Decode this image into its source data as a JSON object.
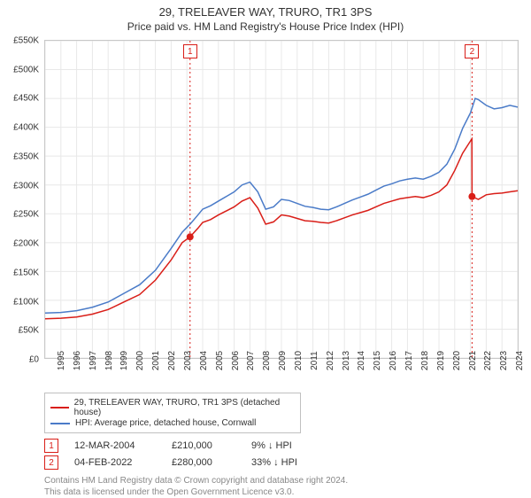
{
  "title": "29, TRELEAVER WAY, TRURO, TR1 3PS",
  "subtitle": "Price paid vs. HM Land Registry's House Price Index (HPI)",
  "chart": {
    "type": "line",
    "background_color": "#ffffff",
    "grid_color": "#e8e8e8",
    "border_color": "#c8c8c8",
    "xlim": [
      1995,
      2025
    ],
    "ylim": [
      0,
      550000
    ],
    "y_ticks": [
      0,
      50000,
      100000,
      150000,
      200000,
      250000,
      300000,
      350000,
      400000,
      450000,
      500000,
      550000
    ],
    "y_tick_labels": [
      "£0",
      "£50K",
      "£100K",
      "£150K",
      "£200K",
      "£250K",
      "£300K",
      "£350K",
      "£400K",
      "£450K",
      "£500K",
      "£550K"
    ],
    "x_ticks": [
      1995,
      1996,
      1997,
      1998,
      1999,
      2000,
      2001,
      2002,
      2003,
      2004,
      2005,
      2006,
      2007,
      2008,
      2009,
      2010,
      2011,
      2012,
      2013,
      2014,
      2015,
      2016,
      2017,
      2018,
      2019,
      2020,
      2021,
      2022,
      2023,
      2024,
      2025
    ],
    "tick_fontsize": 10,
    "series": [
      {
        "name": "29, TRELEAVER WAY, TRURO, TR1 3PS (detached house)",
        "color": "#d91e18",
        "line_width": 1.5,
        "data": [
          [
            1995,
            68000
          ],
          [
            1996,
            69000
          ],
          [
            1997,
            71000
          ],
          [
            1998,
            76000
          ],
          [
            1999,
            84000
          ],
          [
            2000,
            97000
          ],
          [
            2001,
            110000
          ],
          [
            2002,
            135000
          ],
          [
            2003,
            170000
          ],
          [
            2003.7,
            200000
          ],
          [
            2004.2,
            210000
          ],
          [
            2004.7,
            225000
          ],
          [
            2005,
            235000
          ],
          [
            2005.5,
            240000
          ],
          [
            2006,
            248000
          ],
          [
            2006.5,
            255000
          ],
          [
            2007,
            262000
          ],
          [
            2007.5,
            272000
          ],
          [
            2008,
            278000
          ],
          [
            2008.5,
            260000
          ],
          [
            2009,
            232000
          ],
          [
            2009.5,
            236000
          ],
          [
            2010,
            248000
          ],
          [
            2010.5,
            246000
          ],
          [
            2011,
            242000
          ],
          [
            2011.5,
            238000
          ],
          [
            2012,
            237000
          ],
          [
            2012.5,
            235000
          ],
          [
            2013,
            234000
          ],
          [
            2013.5,
            238000
          ],
          [
            2014,
            243000
          ],
          [
            2014.5,
            248000
          ],
          [
            2015,
            252000
          ],
          [
            2015.5,
            256000
          ],
          [
            2016,
            262000
          ],
          [
            2016.5,
            268000
          ],
          [
            2017,
            272000
          ],
          [
            2017.5,
            276000
          ],
          [
            2018,
            278000
          ],
          [
            2018.5,
            280000
          ],
          [
            2019,
            278000
          ],
          [
            2019.5,
            282000
          ],
          [
            2020,
            288000
          ],
          [
            2020.5,
            300000
          ],
          [
            2021,
            325000
          ],
          [
            2021.5,
            355000
          ],
          [
            2022.09,
            380000
          ],
          [
            2022.1,
            280000
          ],
          [
            2022.5,
            275000
          ],
          [
            2023,
            283000
          ],
          [
            2023.5,
            285000
          ],
          [
            2024,
            286000
          ],
          [
            2024.5,
            288000
          ],
          [
            2025,
            290000
          ]
        ]
      },
      {
        "name": "HPI: Average price, detached house, Cornwall",
        "color": "#4a7bc8",
        "line_width": 1.5,
        "data": [
          [
            1995,
            78000
          ],
          [
            1996,
            79000
          ],
          [
            1997,
            82000
          ],
          [
            1998,
            88000
          ],
          [
            1999,
            97000
          ],
          [
            2000,
            112000
          ],
          [
            2001,
            127000
          ],
          [
            2002,
            152000
          ],
          [
            2003,
            190000
          ],
          [
            2003.7,
            218000
          ],
          [
            2004.2,
            232000
          ],
          [
            2004.7,
            248000
          ],
          [
            2005,
            258000
          ],
          [
            2005.5,
            264000
          ],
          [
            2006,
            272000
          ],
          [
            2006.5,
            280000
          ],
          [
            2007,
            288000
          ],
          [
            2007.5,
            300000
          ],
          [
            2008,
            305000
          ],
          [
            2008.5,
            288000
          ],
          [
            2009,
            258000
          ],
          [
            2009.5,
            262000
          ],
          [
            2010,
            275000
          ],
          [
            2010.5,
            273000
          ],
          [
            2011,
            268000
          ],
          [
            2011.5,
            263000
          ],
          [
            2012,
            261000
          ],
          [
            2012.5,
            258000
          ],
          [
            2013,
            257000
          ],
          [
            2013.5,
            262000
          ],
          [
            2014,
            268000
          ],
          [
            2014.5,
            274000
          ],
          [
            2015,
            279000
          ],
          [
            2015.5,
            284000
          ],
          [
            2016,
            291000
          ],
          [
            2016.5,
            298000
          ],
          [
            2017,
            302000
          ],
          [
            2017.5,
            307000
          ],
          [
            2018,
            310000
          ],
          [
            2018.5,
            312000
          ],
          [
            2019,
            310000
          ],
          [
            2019.5,
            315000
          ],
          [
            2020,
            322000
          ],
          [
            2020.5,
            336000
          ],
          [
            2021,
            362000
          ],
          [
            2021.5,
            398000
          ],
          [
            2022,
            425000
          ],
          [
            2022.3,
            450000
          ],
          [
            2022.5,
            448000
          ],
          [
            2023,
            438000
          ],
          [
            2023.5,
            432000
          ],
          [
            2024,
            434000
          ],
          [
            2024.5,
            438000
          ],
          [
            2025,
            435000
          ]
        ]
      }
    ],
    "data_points": [
      {
        "x": 2004.2,
        "y": 210000,
        "color": "#d91e18",
        "radius": 4
      },
      {
        "x": 2022.1,
        "y": 280000,
        "color": "#d91e18",
        "radius": 4
      }
    ],
    "event_lines": [
      {
        "x": 2004.2,
        "label": "1",
        "color": "#d91e18"
      },
      {
        "x": 2022.1,
        "label": "2",
        "color": "#d91e18"
      }
    ]
  },
  "legend": {
    "items": [
      {
        "color": "#d91e18",
        "label": "29, TRELEAVER WAY, TRURO, TR1 3PS (detached house)"
      },
      {
        "color": "#4a7bc8",
        "label": "HPI: Average price, detached house, Cornwall"
      }
    ]
  },
  "events": [
    {
      "marker": "1",
      "marker_color": "#d91e18",
      "date": "12-MAR-2004",
      "price": "£210,000",
      "delta": "9% ↓ HPI"
    },
    {
      "marker": "2",
      "marker_color": "#d91e18",
      "date": "04-FEB-2022",
      "price": "£280,000",
      "delta": "33% ↓ HPI"
    }
  ],
  "footer_line1": "Contains HM Land Registry data © Crown copyright and database right 2024.",
  "footer_line2": "This data is licensed under the Open Government Licence v3.0."
}
